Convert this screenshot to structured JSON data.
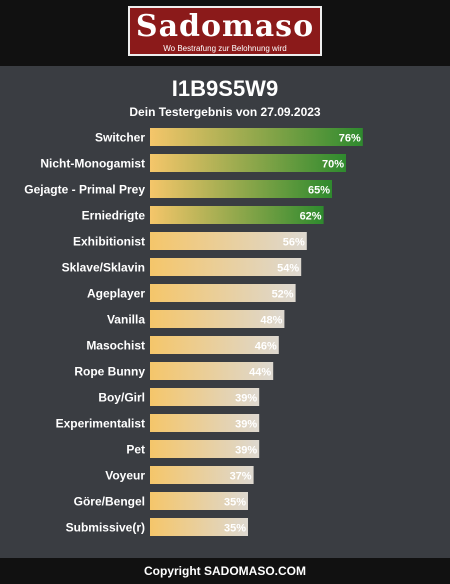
{
  "header": {
    "logo_text": "Sadomaso",
    "tagline": "Wo Bestrafung zur Belohnung wird"
  },
  "title": "I1B9S5W9",
  "subtitle": "Dein Testergebnis von 27.09.2023",
  "footer": "Copyright SADOMASO.COM",
  "colors": {
    "background": "#3a3d42",
    "bar_start": "#f5c66a",
    "bar_end_low": "#ddd8d0",
    "bar_end_high": "#2e8a2e",
    "logo_red": "#8b1a1a"
  },
  "chart_data": {
    "type": "bar",
    "orientation": "horizontal",
    "categories": [
      "Switcher",
      "Nicht-Monogamist",
      "Gejagte - Primal Prey",
      "Erniedrigte",
      "Exhibitionist",
      "Sklave/Sklavin",
      "Ageplayer",
      "Vanilla",
      "Masochist",
      "Rope Bunny",
      "Boy/Girl",
      "Experimentalist",
      "Pet",
      "Voyeur",
      "Göre/Bengel",
      "Submissive(r)"
    ],
    "values": [
      76,
      70,
      65,
      62,
      56,
      54,
      52,
      48,
      46,
      44,
      39,
      39,
      39,
      37,
      35,
      35
    ],
    "labels": [
      "76%",
      "70%",
      "65%",
      "62%",
      "56%",
      "54%",
      "52%",
      "48%",
      "46%",
      "44%",
      "39%",
      "39%",
      "39%",
      "37%",
      "35%",
      "35%"
    ],
    "highlighted": [
      true,
      true,
      true,
      true,
      false,
      false,
      false,
      false,
      false,
      false,
      false,
      false,
      false,
      false,
      false,
      false
    ],
    "xlim": [
      0,
      100
    ],
    "unit": "%"
  }
}
